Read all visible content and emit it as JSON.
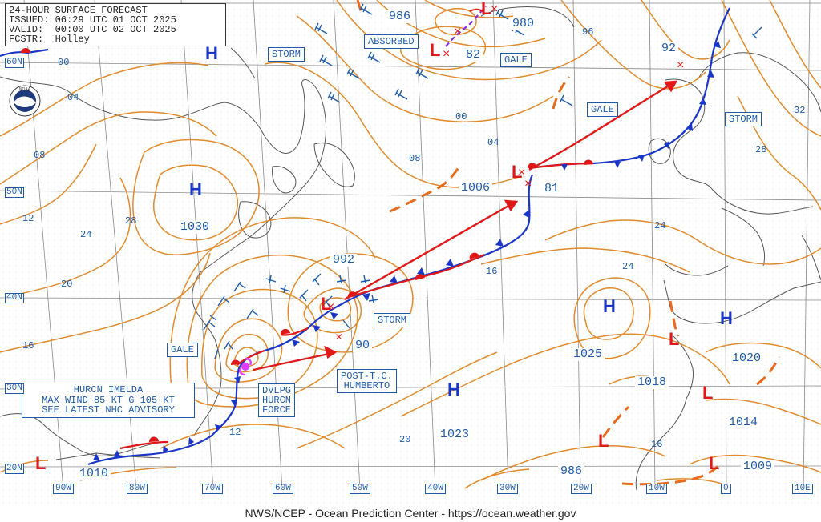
{
  "header": {
    "line1": "24-HOUR SURFACE FORECAST",
    "line2": "ISSUED: 06:29 UTC 01 OCT 2025",
    "line3": "VALID:  00:00 UTC 02 OCT 2025",
    "line4": "FCSTR:  Holley"
  },
  "footer": "NWS/NCEP - Ocean Prediction Center - https://ocean.weather.gov",
  "logo": "noaa-logo",
  "advisory": {
    "line1": "HURCN IMELDA",
    "line2": "MAX WIND 85 KT G 105 KT",
    "line3": "SEE LATEST NHC ADVISORY"
  },
  "boxes": {
    "storm1": "STORM",
    "absorbed": "ABSORBED",
    "gale1": "GALE",
    "gale2": "GALE",
    "storm2": "STORM",
    "storm3": "STORM",
    "gale3": "GALE",
    "dvlpg1": "DVLPG",
    "dvlpg2": "HURCN",
    "dvlpg3": "FORCE",
    "posttc1": "POST-T.C.",
    "posttc2": "HUMBERTO"
  },
  "pressures": {
    "p986a": "986",
    "p980": "980",
    "p82": "82",
    "p92": "92",
    "p1006": "1006",
    "p81": "81",
    "p1030": "1030",
    "p992": "992",
    "p90": "90",
    "p1025": "1025",
    "p1018": "1018",
    "p1020": "1020",
    "p1014": "1014",
    "p1023": "1023",
    "p1010": "1010",
    "p986b": "986",
    "p1009": "1009"
  },
  "contour_labels": [
    "00",
    "04",
    "08",
    "12",
    "20",
    "16",
    "24",
    "28",
    "96",
    "00",
    "04",
    "08",
    "16",
    "24",
    "24",
    "28",
    "32",
    "12",
    "20",
    "16"
  ],
  "lat_labels": [
    "60N",
    "50N",
    "40N",
    "30N",
    "20N"
  ],
  "lon_labels": [
    "90W",
    "80W",
    "70W",
    "60W",
    "50W",
    "40W",
    "30W",
    "20W",
    "10W",
    "0",
    "10E"
  ],
  "symbols": {
    "high": "H",
    "low": "L"
  },
  "colors": {
    "isobar": "#e08a2c",
    "coast": "#555555",
    "grid": "#8a8a8a",
    "cold_front": "#1a36c8",
    "warm_front": "#e01818",
    "label": "#1e5aa8",
    "track": "#e01818"
  },
  "icons": [
    "high-pressure-icon",
    "low-pressure-icon",
    "storm-center-x-icon",
    "wind-barb-icon",
    "hurricane-icon"
  ]
}
